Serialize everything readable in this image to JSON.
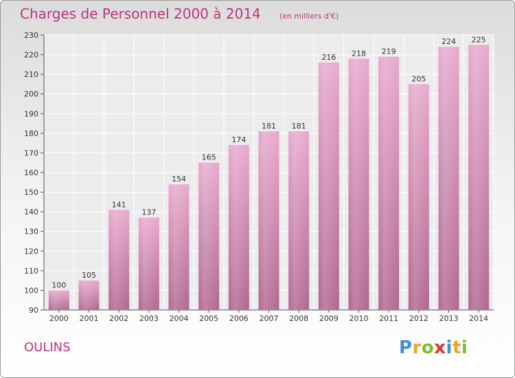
{
  "header": {
    "title": "Charges de Personnel 2000 à 2014",
    "subtitle": "(en milliers d'€)"
  },
  "footer": {
    "commune": "OULINS",
    "brand": "Proxiti"
  },
  "colors": {
    "accent": "#c0317f",
    "bar_light": "#e8a8cd",
    "bar_dark": "#b0668f"
  },
  "chart_data": {
    "type": "bar",
    "title": "Charges de Personnel 2000 à 2014",
    "subtitle": "(en milliers d'€)",
    "xlabel": "",
    "ylabel": "",
    "categories": [
      "2000",
      "2001",
      "2002",
      "2003",
      "2004",
      "2005",
      "2006",
      "2007",
      "2008",
      "2009",
      "2010",
      "2011",
      "2012",
      "2013",
      "2014"
    ],
    "values": [
      100,
      105,
      141,
      137,
      154,
      165,
      174,
      181,
      181,
      216,
      218,
      219,
      205,
      224,
      225
    ],
    "ylim": [
      90,
      230
    ],
    "yticks": [
      90,
      100,
      110,
      120,
      130,
      140,
      150,
      160,
      170,
      180,
      190,
      200,
      210,
      220,
      230
    ],
    "grid": true,
    "data_labels": true
  }
}
